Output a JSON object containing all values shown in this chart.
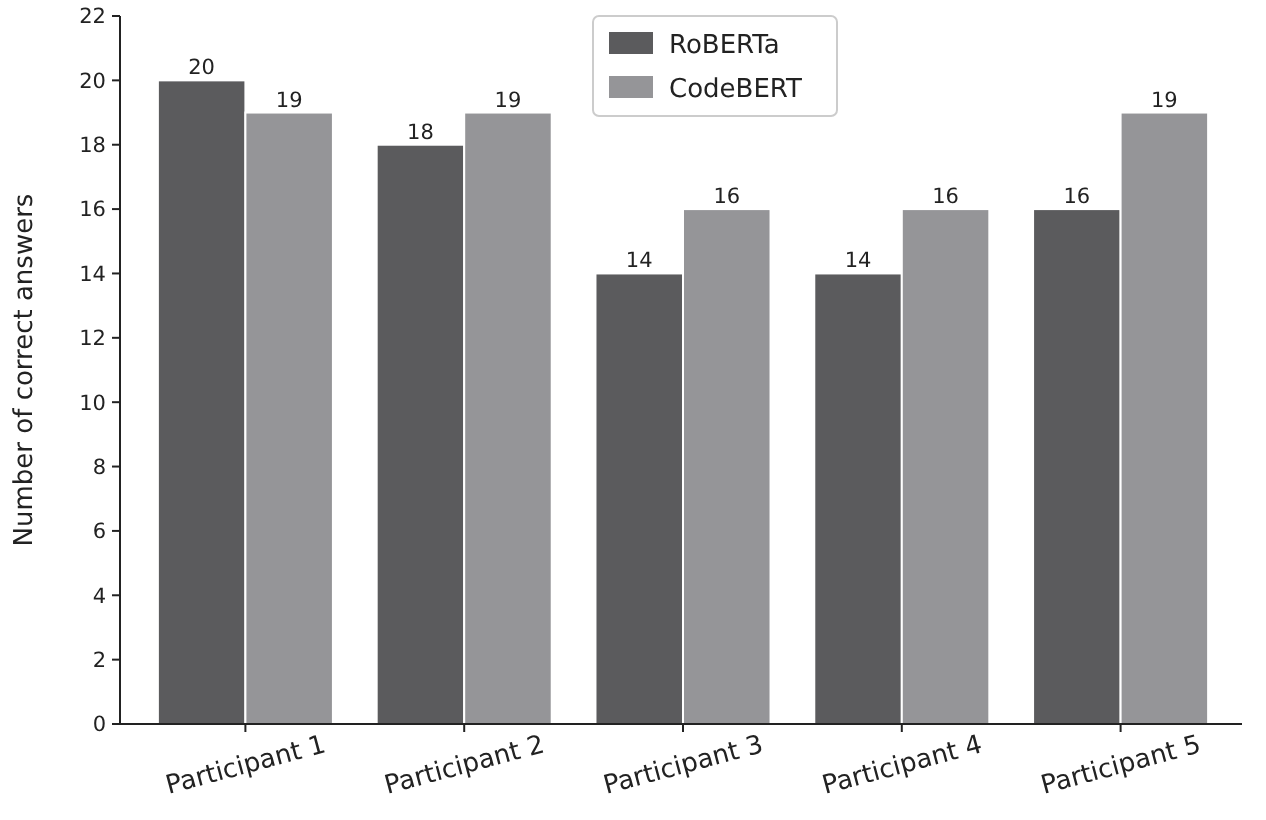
{
  "chart_data": {
    "type": "bar",
    "ylabel": "Number of correct answers",
    "categories": [
      "Participant 1",
      "Participant 2",
      "Participant 3",
      "Participant 4",
      "Participant 5"
    ],
    "series": [
      {
        "name": "RoBERTa",
        "color": "#5b5b5d",
        "values": [
          20,
          18,
          14,
          14,
          16
        ]
      },
      {
        "name": "CodeBERT",
        "color": "#959598",
        "values": [
          19,
          19,
          16,
          16,
          19
        ]
      }
    ],
    "ylim": [
      0,
      22
    ],
    "yticks": [
      0,
      2,
      4,
      6,
      8,
      10,
      12,
      14,
      16,
      18,
      20,
      22
    ],
    "grid": false,
    "legend": "top",
    "data_labels": true
  }
}
